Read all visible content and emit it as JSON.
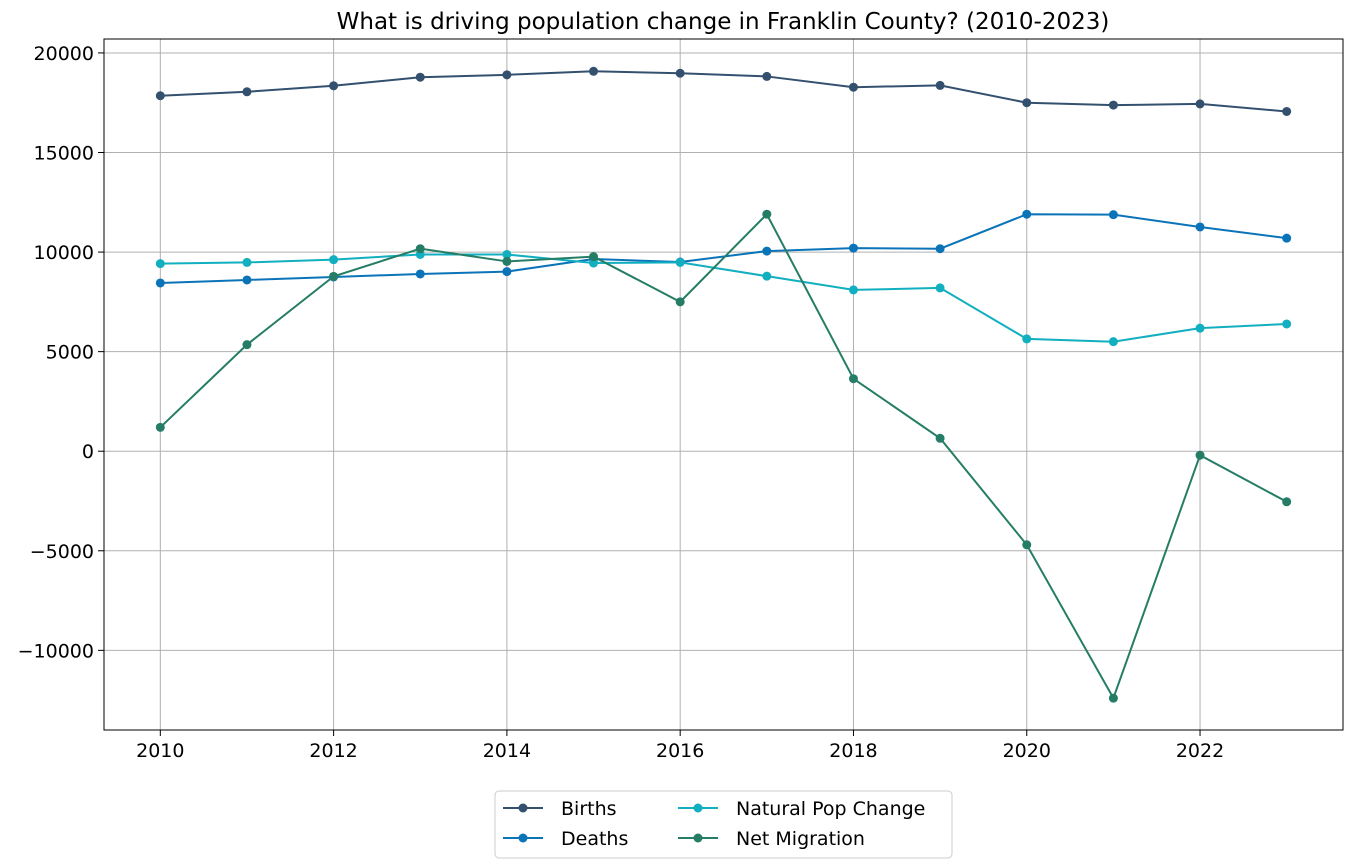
{
  "chart_data": {
    "type": "line",
    "title": "What is driving population change in Franklin County? (2010-2023)",
    "xlabel": "",
    "ylabel": "",
    "x": [
      2010,
      2011,
      2012,
      2013,
      2014,
      2015,
      2016,
      2017,
      2018,
      2019,
      2020,
      2021,
      2022,
      2023
    ],
    "xlim": [
      2009.35,
      2023.65
    ],
    "ylim": [
      -14000,
      20700
    ],
    "x_ticks": [
      2010,
      2012,
      2014,
      2016,
      2018,
      2020,
      2022
    ],
    "y_ticks": [
      -10000,
      -5000,
      0,
      5000,
      10000,
      15000,
      20000
    ],
    "y_tick_labels": [
      "−10000",
      "−5000",
      "0",
      "5000",
      "10000",
      "15000",
      "20000"
    ],
    "grid": true,
    "legend_position": "bottom-center",
    "series": [
      {
        "name": "Births",
        "color": "#34506f",
        "values": [
          17850,
          18050,
          18350,
          18780,
          18900,
          19080,
          18980,
          18820,
          18280,
          18370,
          17500,
          17380,
          17440,
          17060
        ]
      },
      {
        "name": "Deaths",
        "color": "#0b74b8",
        "values": [
          8450,
          8600,
          8750,
          8900,
          9020,
          9650,
          9500,
          10050,
          10200,
          10170,
          11900,
          11880,
          11260,
          10700
        ]
      },
      {
        "name": "Natural Pop Change",
        "color": "#12afc0",
        "values": [
          9420,
          9480,
          9620,
          9880,
          9880,
          9450,
          9480,
          8790,
          8100,
          8200,
          5640,
          5500,
          6180,
          6390
        ]
      },
      {
        "name": "Net Migration",
        "color": "#257d65",
        "values": [
          1200,
          5350,
          8780,
          10170,
          9530,
          9770,
          7500,
          11900,
          3640,
          650,
          -4700,
          -12400,
          -200,
          -2540
        ]
      }
    ]
  }
}
